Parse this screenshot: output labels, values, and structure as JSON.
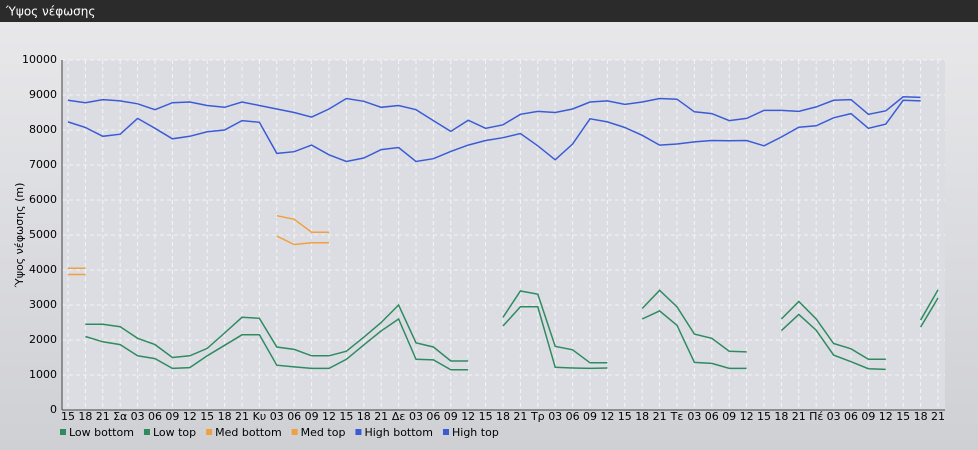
{
  "chart_data": {
    "type": "line",
    "title": "Ύψος νέφωσης",
    "y_label": "Ύψος νέφωσης (m)",
    "categories": [
      "15",
      "18",
      "21",
      "Σα",
      "03",
      "06",
      "09",
      "12",
      "15",
      "18",
      "21",
      "Κυ",
      "03",
      "06",
      "09",
      "12",
      "15",
      "18",
      "21",
      "Δε",
      "03",
      "06",
      "09",
      "12",
      "15",
      "18",
      "21",
      "Τρ",
      "03",
      "06",
      "09",
      "12",
      "15",
      "18",
      "21",
      "Τε",
      "03",
      "06",
      "09",
      "12",
      "15",
      "18",
      "21",
      "Πέ",
      "03",
      "06",
      "09",
      "12",
      "15",
      "18",
      "21"
    ],
    "series": [
      {
        "name": "Low bottom",
        "color": "#2e8b5f",
        "values": [
          null,
          2100,
          1950,
          1870,
          1550,
          1470,
          1190,
          1210,
          1550,
          1850,
          2150,
          2150,
          1280,
          1230,
          1190,
          1190,
          1450,
          1860,
          2260,
          2600,
          1450,
          1430,
          1150,
          1150,
          null,
          2400,
          2950,
          2950,
          1220,
          1200,
          1190,
          1200,
          null,
          2600,
          2830,
          2420,
          1360,
          1330,
          1190,
          1190,
          null,
          2270,
          2730,
          2280,
          1570,
          1380,
          1180,
          1160,
          null,
          2370,
          3200
        ]
      },
      {
        "name": "Low top",
        "color": "#2e8b5f",
        "values": [
          null,
          2450,
          2450,
          2380,
          2050,
          1870,
          1500,
          1550,
          1760,
          2200,
          2650,
          2620,
          1800,
          1730,
          1550,
          1550,
          1680,
          2080,
          2500,
          3000,
          1920,
          1800,
          1400,
          1400,
          null,
          2650,
          3400,
          3310,
          1820,
          1720,
          1350,
          1350,
          null,
          2900,
          3420,
          2950,
          2170,
          2050,
          1680,
          1660,
          null,
          2600,
          3100,
          2600,
          1900,
          1750,
          1450,
          1450,
          null,
          2570,
          3430
        ]
      },
      {
        "name": "Med bottom",
        "color": "#f0a040",
        "values": [
          3870,
          3870,
          null,
          null,
          null,
          null,
          null,
          null,
          null,
          null,
          null,
          null,
          4970,
          4730,
          4780,
          4780,
          null,
          null,
          null,
          null,
          null,
          null,
          null,
          null,
          null,
          null,
          null,
          null,
          null,
          null,
          null,
          null,
          null,
          null,
          null,
          null,
          null,
          null,
          null,
          null,
          null,
          null,
          null,
          null,
          null,
          null,
          null,
          null,
          null,
          null,
          null
        ]
      },
      {
        "name": "Med top",
        "color": "#f0a040",
        "values": [
          4050,
          4050,
          null,
          null,
          null,
          null,
          null,
          null,
          null,
          null,
          null,
          null,
          5550,
          5450,
          5080,
          5080,
          null,
          null,
          null,
          null,
          null,
          null,
          null,
          null,
          null,
          null,
          null,
          null,
          null,
          null,
          null,
          null,
          null,
          null,
          null,
          null,
          null,
          null,
          null,
          null,
          null,
          null,
          null,
          null,
          null,
          null,
          null,
          null,
          null,
          null,
          null
        ]
      },
      {
        "name": "High bottom",
        "color": "#3b5bd6",
        "values": [
          8230,
          8070,
          7820,
          7880,
          8330,
          8050,
          7750,
          7820,
          7950,
          8000,
          8270,
          8220,
          7330,
          7380,
          7570,
          7290,
          7100,
          7200,
          7440,
          7500,
          7100,
          7180,
          7390,
          7570,
          7700,
          7780,
          7900,
          7550,
          7150,
          7600,
          8320,
          8230,
          8070,
          7850,
          7570,
          7600,
          7660,
          7700,
          7690,
          7700,
          7550,
          7800,
          8080,
          8120,
          8350,
          8470,
          8050,
          8170,
          8850,
          8830,
          null
        ]
      },
      {
        "name": "High top",
        "color": "#3b5bd6",
        "values": [
          8850,
          8780,
          8870,
          8830,
          8750,
          8580,
          8780,
          8800,
          8700,
          8650,
          8800,
          8700,
          8600,
          8500,
          8370,
          8600,
          8900,
          8820,
          8650,
          8700,
          8580,
          8270,
          7960,
          8280,
          8050,
          8150,
          8450,
          8530,
          8500,
          8600,
          8800,
          8830,
          8730,
          8800,
          8900,
          8880,
          8520,
          8470,
          8270,
          8330,
          8560,
          8560,
          8530,
          8660,
          8850,
          8870,
          8450,
          8550,
          8950,
          8930,
          null
        ]
      }
    ],
    "ylim": [
      0,
      10000
    ],
    "yticks": [
      0,
      1000,
      2000,
      3000,
      4000,
      5000,
      6000,
      7000,
      8000,
      9000,
      10000
    ],
    "grid": true
  }
}
